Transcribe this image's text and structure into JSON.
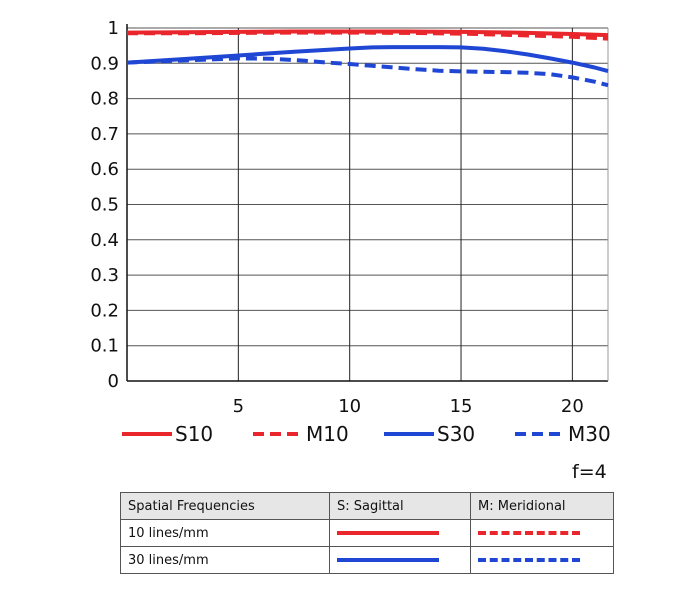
{
  "chart_data": {
    "type": "line",
    "ylim": [
      0,
      1
    ],
    "xlim": [
      0,
      21.6
    ],
    "yticks": [
      "0",
      "0.1",
      "0.2",
      "0.3",
      "0.4",
      "0.5",
      "0.6",
      "0.7",
      "0.8",
      "0.9",
      "1"
    ],
    "xticks": [
      "5",
      "10",
      "15",
      "20"
    ],
    "xtick_values": [
      5,
      10,
      15,
      20
    ],
    "ytick_values": [
      0,
      0.1,
      0.2,
      0.3,
      0.4,
      0.5,
      0.6,
      0.7,
      0.8,
      0.9,
      1
    ],
    "grid": true,
    "series": [
      {
        "name": "S10",
        "color": "#e8262b",
        "style": "solid",
        "x": [
          0,
          2.5,
          5,
          7.5,
          10,
          12.5,
          15,
          17.5,
          20,
          21.6
        ],
        "y": [
          0.987,
          0.988,
          0.989,
          0.99,
          0.99,
          0.99,
          0.989,
          0.987,
          0.983,
          0.98
        ]
      },
      {
        "name": "M10",
        "color": "#e8262b",
        "style": "dashed",
        "x": [
          0,
          2.5,
          5,
          7.5,
          10,
          12.5,
          15,
          17.5,
          20,
          21.6
        ],
        "y": [
          0.985,
          0.985,
          0.986,
          0.987,
          0.987,
          0.986,
          0.984,
          0.98,
          0.975,
          0.97
        ]
      },
      {
        "name": "S30",
        "color": "#1f47d4",
        "style": "solid",
        "x": [
          0,
          2.5,
          5,
          7.5,
          10,
          11,
          12,
          13,
          14,
          15,
          16,
          17,
          18,
          19,
          20,
          21,
          21.6
        ],
        "y": [
          0.902,
          0.912,
          0.922,
          0.933,
          0.942,
          0.945,
          0.946,
          0.946,
          0.946,
          0.945,
          0.941,
          0.934,
          0.925,
          0.914,
          0.902,
          0.888,
          0.878
        ]
      },
      {
        "name": "M30",
        "color": "#1f47d4",
        "style": "dashed",
        "x": [
          0,
          2.5,
          5,
          6.5,
          8,
          9,
          10,
          11,
          12,
          13,
          14,
          15,
          16,
          17,
          18,
          19,
          20,
          21,
          21.6
        ],
        "y": [
          0.902,
          0.908,
          0.914,
          0.913,
          0.907,
          0.902,
          0.898,
          0.893,
          0.888,
          0.883,
          0.879,
          0.877,
          0.876,
          0.875,
          0.873,
          0.869,
          0.86,
          0.848,
          0.838
        ]
      }
    ],
    "legend_position": "bottom"
  },
  "aperture_label": "f=4",
  "table": {
    "header": [
      "Spatial Frequencies",
      "S: Sagittal",
      "M: Meridional"
    ],
    "rows": [
      {
        "label": "10 lines/mm",
        "sagittal": "red-solid-line",
        "meridional": "red-dashed-line"
      },
      {
        "label": "30 lines/mm",
        "sagittal": "blue-solid-line",
        "meridional": "blue-dashed-line"
      }
    ]
  }
}
